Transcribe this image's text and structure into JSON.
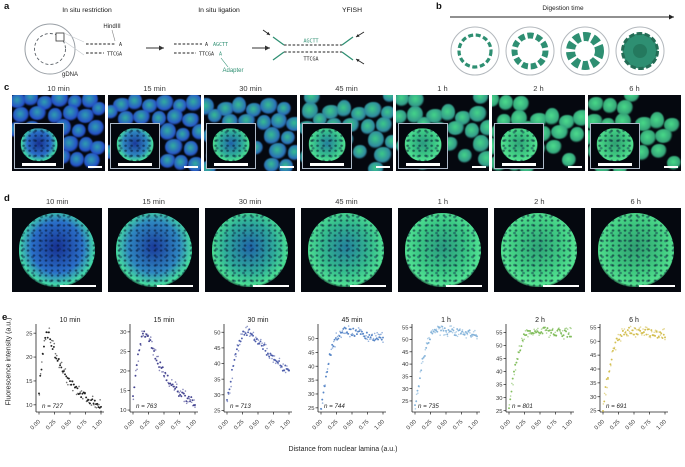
{
  "panels": {
    "a": {
      "label": "a",
      "step1_title": "In situ restriction",
      "step2_title": "In situ ligation",
      "step3_title": "YFISH",
      "enzyme_label": "HindIII",
      "gdna_label": "gDNA",
      "adapter_label": "Adapter",
      "seq_overhang": "A",
      "seq_adapter_top": "AGCTT",
      "seq_bottom": "TTCGA",
      "accent_color": "#2e8f72"
    },
    "b": {
      "label": "b",
      "title": "Digestion time",
      "ring_color": "#2e8f72"
    },
    "c": {
      "label": "c",
      "scale_bar_color": "#ffffff"
    },
    "d": {
      "label": "d",
      "scale_bar_color": "#ffffff"
    },
    "e": {
      "label": "e",
      "ylabel": "Fluorescence intensity (a.u.)",
      "xlabel": "Distance from nuclear lamina (a.u.)"
    }
  },
  "timepoints": [
    {
      "label": "10 min",
      "c_inner": "#2f9fae",
      "c_outer": "#2550c8",
      "d_core": "#16308f",
      "d_mid": "#2a6fc8",
      "d_rim": "#43d9a8"
    },
    {
      "label": "15 min",
      "c_inner": "#32ae9e",
      "c_outer": "#2858c8",
      "d_core": "#1a3a9a",
      "d_mid": "#2e86c0",
      "d_rim": "#46dca0"
    },
    {
      "label": "30 min",
      "c_inner": "#36bd90",
      "c_outer": "#2a6fb8",
      "d_core": "#1f63a8",
      "d_mid": "#2fae9a",
      "d_rim": "#4ade92"
    },
    {
      "label": "45 min",
      "c_inner": "#3cc988",
      "c_outer": "#2f89a0",
      "d_core": "#23809c",
      "d_mid": "#35bd8d",
      "d_rim": "#4fe093"
    },
    {
      "label": "1 h",
      "c_inner": "#44d489",
      "c_outer": "#339a8a",
      "d_core": "#2a9a80",
      "d_mid": "#3bc985",
      "d_rim": "#52e394"
    },
    {
      "label": "2 h",
      "c_inner": "#4cdc8c",
      "c_outer": "#35a87e",
      "d_core": "#2fa578",
      "d_mid": "#41ce84",
      "d_rim": "#55e492"
    },
    {
      "label": "6 h",
      "c_inner": "#48d988",
      "c_outer": "#35a478",
      "d_core": "#2f9f72",
      "d_mid": "#3fc980",
      "d_rim": "#52df8e"
    }
  ],
  "chart_data": [
    {
      "type": "scatter",
      "title": "10 min",
      "n_label": "n = 727",
      "color": "#161616",
      "x_start": 0,
      "x_step": 0.02,
      "xlim": [
        0,
        1
      ],
      "ylim": [
        8.5,
        26.5
      ],
      "yticks": [
        10,
        15,
        20,
        25
      ],
      "xticks": [
        0,
        0.25,
        0.5,
        0.75,
        1
      ],
      "xtick_labels": [
        "0.00",
        "0.25",
        "0.50",
        "0.75",
        "1.00"
      ],
      "y": [
        13.2,
        15.4,
        18.1,
        20.6,
        22.4,
        24.1,
        25.0,
        24.6,
        24.9,
        23.8,
        23.1,
        22.2,
        21.6,
        20.7,
        20.2,
        19.3,
        18.9,
        18.4,
        17.6,
        17.3,
        16.6,
        16.3,
        15.7,
        15.5,
        14.9,
        14.7,
        14.2,
        14.1,
        13.7,
        13.5,
        13.0,
        13.1,
        12.6,
        12.5,
        12.1,
        12.2,
        11.8,
        11.7,
        11.5,
        11.3,
        11.2,
        11.0,
        10.9,
        10.7,
        10.6,
        10.4,
        10.5,
        10.2,
        10.1,
        10.0,
        9.9
      ]
    },
    {
      "type": "scatter",
      "title": "15 min",
      "n_label": "n = 763",
      "color": "#3c3c8c",
      "x_start": 0,
      "x_step": 0.02,
      "xlim": [
        0,
        1
      ],
      "ylim": [
        9.5,
        31.5
      ],
      "yticks": [
        10,
        15,
        20,
        25,
        30
      ],
      "xticks": [
        0,
        0.25,
        0.5,
        0.75,
        1
      ],
      "xtick_labels": [
        "0.00",
        "0.25",
        "0.50",
        "0.75",
        "1.00"
      ],
      "y": [
        14.2,
        16.3,
        18.9,
        21.4,
        23.8,
        25.9,
        27.4,
        28.8,
        29.6,
        30.1,
        29.7,
        29.2,
        28.7,
        27.8,
        27.2,
        26.2,
        25.6,
        24.6,
        24.1,
        23.1,
        22.6,
        21.7,
        21.3,
        20.5,
        20.1,
        19.3,
        19.0,
        18.3,
        18.0,
        17.4,
        17.1,
        16.5,
        16.3,
        15.8,
        15.6,
        15.1,
        15.0,
        14.5,
        14.4,
        14.0,
        13.9,
        13.5,
        13.4,
        13.1,
        13.0,
        12.8,
        12.7,
        12.5,
        12.4,
        12.2,
        12.1
      ]
    },
    {
      "type": "scatter",
      "title": "30 min",
      "n_label": "n = 713",
      "color": "#4656a8",
      "x_start": 0,
      "x_step": 0.02,
      "xlim": [
        0,
        1
      ],
      "ylim": [
        24.5,
        52
      ],
      "yticks": [
        25,
        30,
        35,
        40,
        45,
        50
      ],
      "xticks": [
        0,
        0.25,
        0.5,
        0.75,
        1
      ],
      "xtick_labels": [
        "0.00",
        "0.25",
        "0.50",
        "0.75",
        "1.00"
      ],
      "y": [
        27.2,
        29.6,
        32.1,
        34.6,
        36.9,
        39.1,
        41.0,
        42.9,
        44.4,
        45.9,
        47.0,
        48.1,
        48.8,
        49.5,
        49.8,
        50.1,
        50.2,
        50.1,
        49.9,
        49.6,
        49.3,
        48.9,
        48.5,
        48.1,
        47.6,
        47.2,
        46.7,
        46.2,
        45.8,
        45.3,
        44.8,
        44.4,
        43.9,
        43.5,
        43.0,
        42.6,
        42.1,
        41.7,
        41.3,
        40.9,
        40.5,
        40.1,
        39.8,
        39.4,
        39.1,
        38.8,
        38.5,
        38.2,
        37.9,
        37.6,
        37.4
      ]
    },
    {
      "type": "scatter",
      "title": "45 min",
      "n_label": "n = 744",
      "color": "#4e7fc4",
      "x_start": 0,
      "x_step": 0.02,
      "xlim": [
        0,
        1
      ],
      "ylim": [
        23.5,
        54.5
      ],
      "yticks": [
        25,
        30,
        35,
        40,
        45,
        50
      ],
      "xticks": [
        0,
        0.25,
        0.5,
        0.75,
        1
      ],
      "xtick_labels": [
        "0.00",
        "0.25",
        "0.50",
        "0.75",
        "1.00"
      ],
      "y": [
        25.3,
        28.2,
        31.1,
        33.9,
        36.6,
        39.1,
        41.3,
        43.3,
        45.0,
        46.5,
        47.8,
        48.9,
        49.8,
        50.6,
        51.2,
        51.7,
        52.1,
        52.3,
        52.5,
        52.6,
        52.6,
        52.6,
        52.5,
        52.5,
        52.4,
        52.3,
        52.2,
        52.1,
        52.0,
        51.9,
        51.8,
        51.7,
        51.6,
        51.5,
        51.4,
        51.3,
        51.2,
        51.1,
        51.0,
        50.9,
        50.8,
        50.7,
        50.6,
        50.5,
        50.4,
        50.3,
        50.2,
        50.1,
        50.0,
        49.9,
        49.8
      ]
    },
    {
      "type": "scatter",
      "title": "1 h",
      "n_label": "n = 735",
      "color": "#7fb0d8",
      "x_start": 0,
      "x_step": 0.02,
      "xlim": [
        0,
        1
      ],
      "ylim": [
        20.5,
        55.5
      ],
      "yticks": [
        25,
        30,
        35,
        40,
        45,
        50,
        55
      ],
      "xticks": [
        0,
        0.25,
        0.5,
        0.75,
        1
      ],
      "xtick_labels": [
        "0.00",
        "0.25",
        "0.50",
        "0.75",
        "1.00"
      ],
      "y": [
        22.4,
        25.9,
        29.3,
        32.5,
        35.5,
        38.2,
        40.7,
        42.9,
        44.9,
        46.6,
        48.1,
        49.4,
        50.5,
        51.4,
        52.2,
        52.8,
        53.2,
        53.5,
        53.7,
        53.8,
        53.9,
        53.9,
        53.8,
        53.8,
        53.7,
        53.7,
        53.6,
        53.6,
        53.5,
        53.5,
        53.4,
        53.4,
        53.3,
        53.3,
        53.2,
        53.2,
        53.1,
        53.1,
        53.0,
        53.0,
        52.9,
        52.9,
        52.8,
        52.8,
        52.7,
        52.7,
        52.6,
        52.6,
        52.5,
        52.5,
        52.4
      ]
    },
    {
      "type": "scatter",
      "title": "2 h",
      "n_label": "n = 801",
      "color": "#7cbb55",
      "x_start": 0,
      "x_step": 0.02,
      "xlim": [
        0,
        1
      ],
      "ylim": [
        24.5,
        57.5
      ],
      "yticks": [
        25,
        30,
        35,
        40,
        45,
        50,
        55
      ],
      "xticks": [
        0,
        0.25,
        0.5,
        0.75,
        1
      ],
      "xtick_labels": [
        "0.00",
        "0.25",
        "0.50",
        "0.75",
        "1.00"
      ],
      "y": [
        27.3,
        30.4,
        33.5,
        36.4,
        39.1,
        41.7,
        44.0,
        46.1,
        47.9,
        49.5,
        50.9,
        52.1,
        53.1,
        53.9,
        54.6,
        55.1,
        55.5,
        55.7,
        55.9,
        56.0,
        56.0,
        55.9,
        55.9,
        55.8,
        55.8,
        55.7,
        55.7,
        55.6,
        55.6,
        55.5,
        55.5,
        55.4,
        55.4,
        55.3,
        55.3,
        55.2,
        55.2,
        55.1,
        55.1,
        55.0,
        55.0,
        54.9,
        54.9,
        54.8,
        54.8,
        54.7,
        54.7,
        54.6,
        54.6,
        54.5,
        54.4
      ]
    },
    {
      "type": "scatter",
      "title": "6 h",
      "n_label": "n = 691",
      "color": "#d2bd4a",
      "x_start": 0,
      "x_step": 0.02,
      "xlim": [
        0,
        1
      ],
      "ylim": [
        24.5,
        55.5
      ],
      "yticks": [
        25,
        30,
        35,
        40,
        45,
        50,
        55
      ],
      "xticks": [
        0,
        0.25,
        0.5,
        0.75,
        1
      ],
      "xtick_labels": [
        "0.00",
        "0.25",
        "0.50",
        "0.75",
        "1.00"
      ],
      "y": [
        26.2,
        29.2,
        32.2,
        35.0,
        37.7,
        40.2,
        42.4,
        44.4,
        46.1,
        47.6,
        48.9,
        50.0,
        50.9,
        51.7,
        52.3,
        52.8,
        53.2,
        53.5,
        53.6,
        53.7,
        53.8,
        53.8,
        53.7,
        53.7,
        53.6,
        53.6,
        53.5,
        53.5,
        53.4,
        53.4,
        53.3,
        53.3,
        53.2,
        53.2,
        53.1,
        53.1,
        53.0,
        53.0,
        52.9,
        52.9,
        52.8,
        52.8,
        52.7,
        52.7,
        52.6,
        52.6,
        52.5,
        52.5,
        52.4,
        52.4,
        52.3
      ]
    }
  ]
}
